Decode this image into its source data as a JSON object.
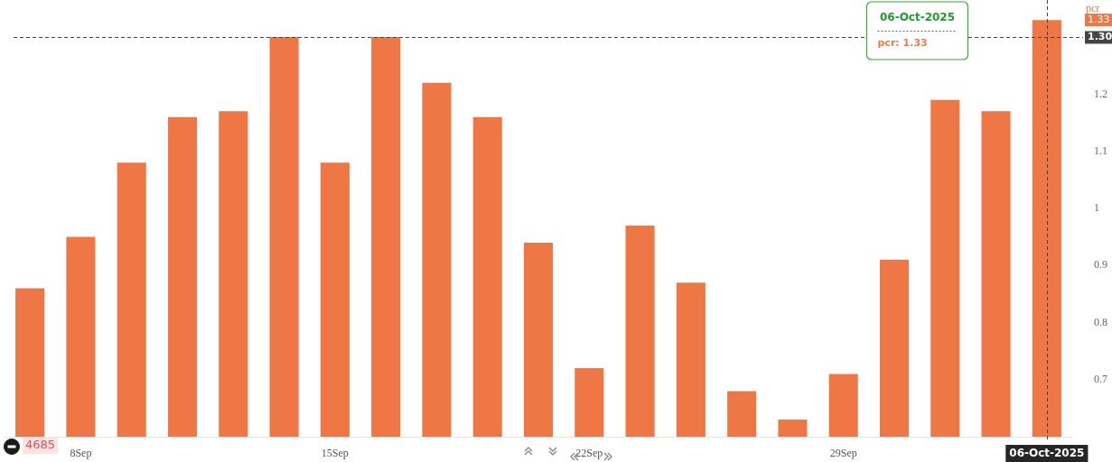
{
  "chart_data": {
    "type": "bar",
    "categories": [
      null,
      "8Sep",
      null,
      null,
      null,
      null,
      "15Sep",
      null,
      null,
      null,
      null,
      "22Sep",
      null,
      null,
      null,
      null,
      "29Sep",
      null,
      null,
      null,
      "06-Oct-2025"
    ],
    "series": [
      {
        "name": "pcr",
        "color": "#ee7745",
        "values": [
          0.86,
          0.95,
          1.08,
          1.16,
          1.17,
          1.3,
          1.08,
          1.3,
          1.22,
          1.16,
          0.94,
          0.72,
          0.97,
          0.87,
          0.68,
          0.63,
          0.71,
          0.91,
          1.19,
          1.17,
          1.33
        ]
      }
    ],
    "ylim": [
      0.6,
      1.365
    ],
    "yticks": [
      0.7,
      0.8,
      0.9,
      1,
      1.1,
      1.2
    ],
    "grid": false,
    "legend": false,
    "ref_lines": [
      {
        "axis": "y",
        "value": 1.3,
        "label": "1.30",
        "color": "#444444",
        "line_style": "dashed"
      },
      {
        "axis": "x",
        "value": "06-Oct-2025",
        "color": "#444444",
        "line_style": "dashed"
      }
    ],
    "annotations": [
      "06-Oct-2025",
      "pcr: 1.33",
      "4685",
      "1.33"
    ]
  }
}
